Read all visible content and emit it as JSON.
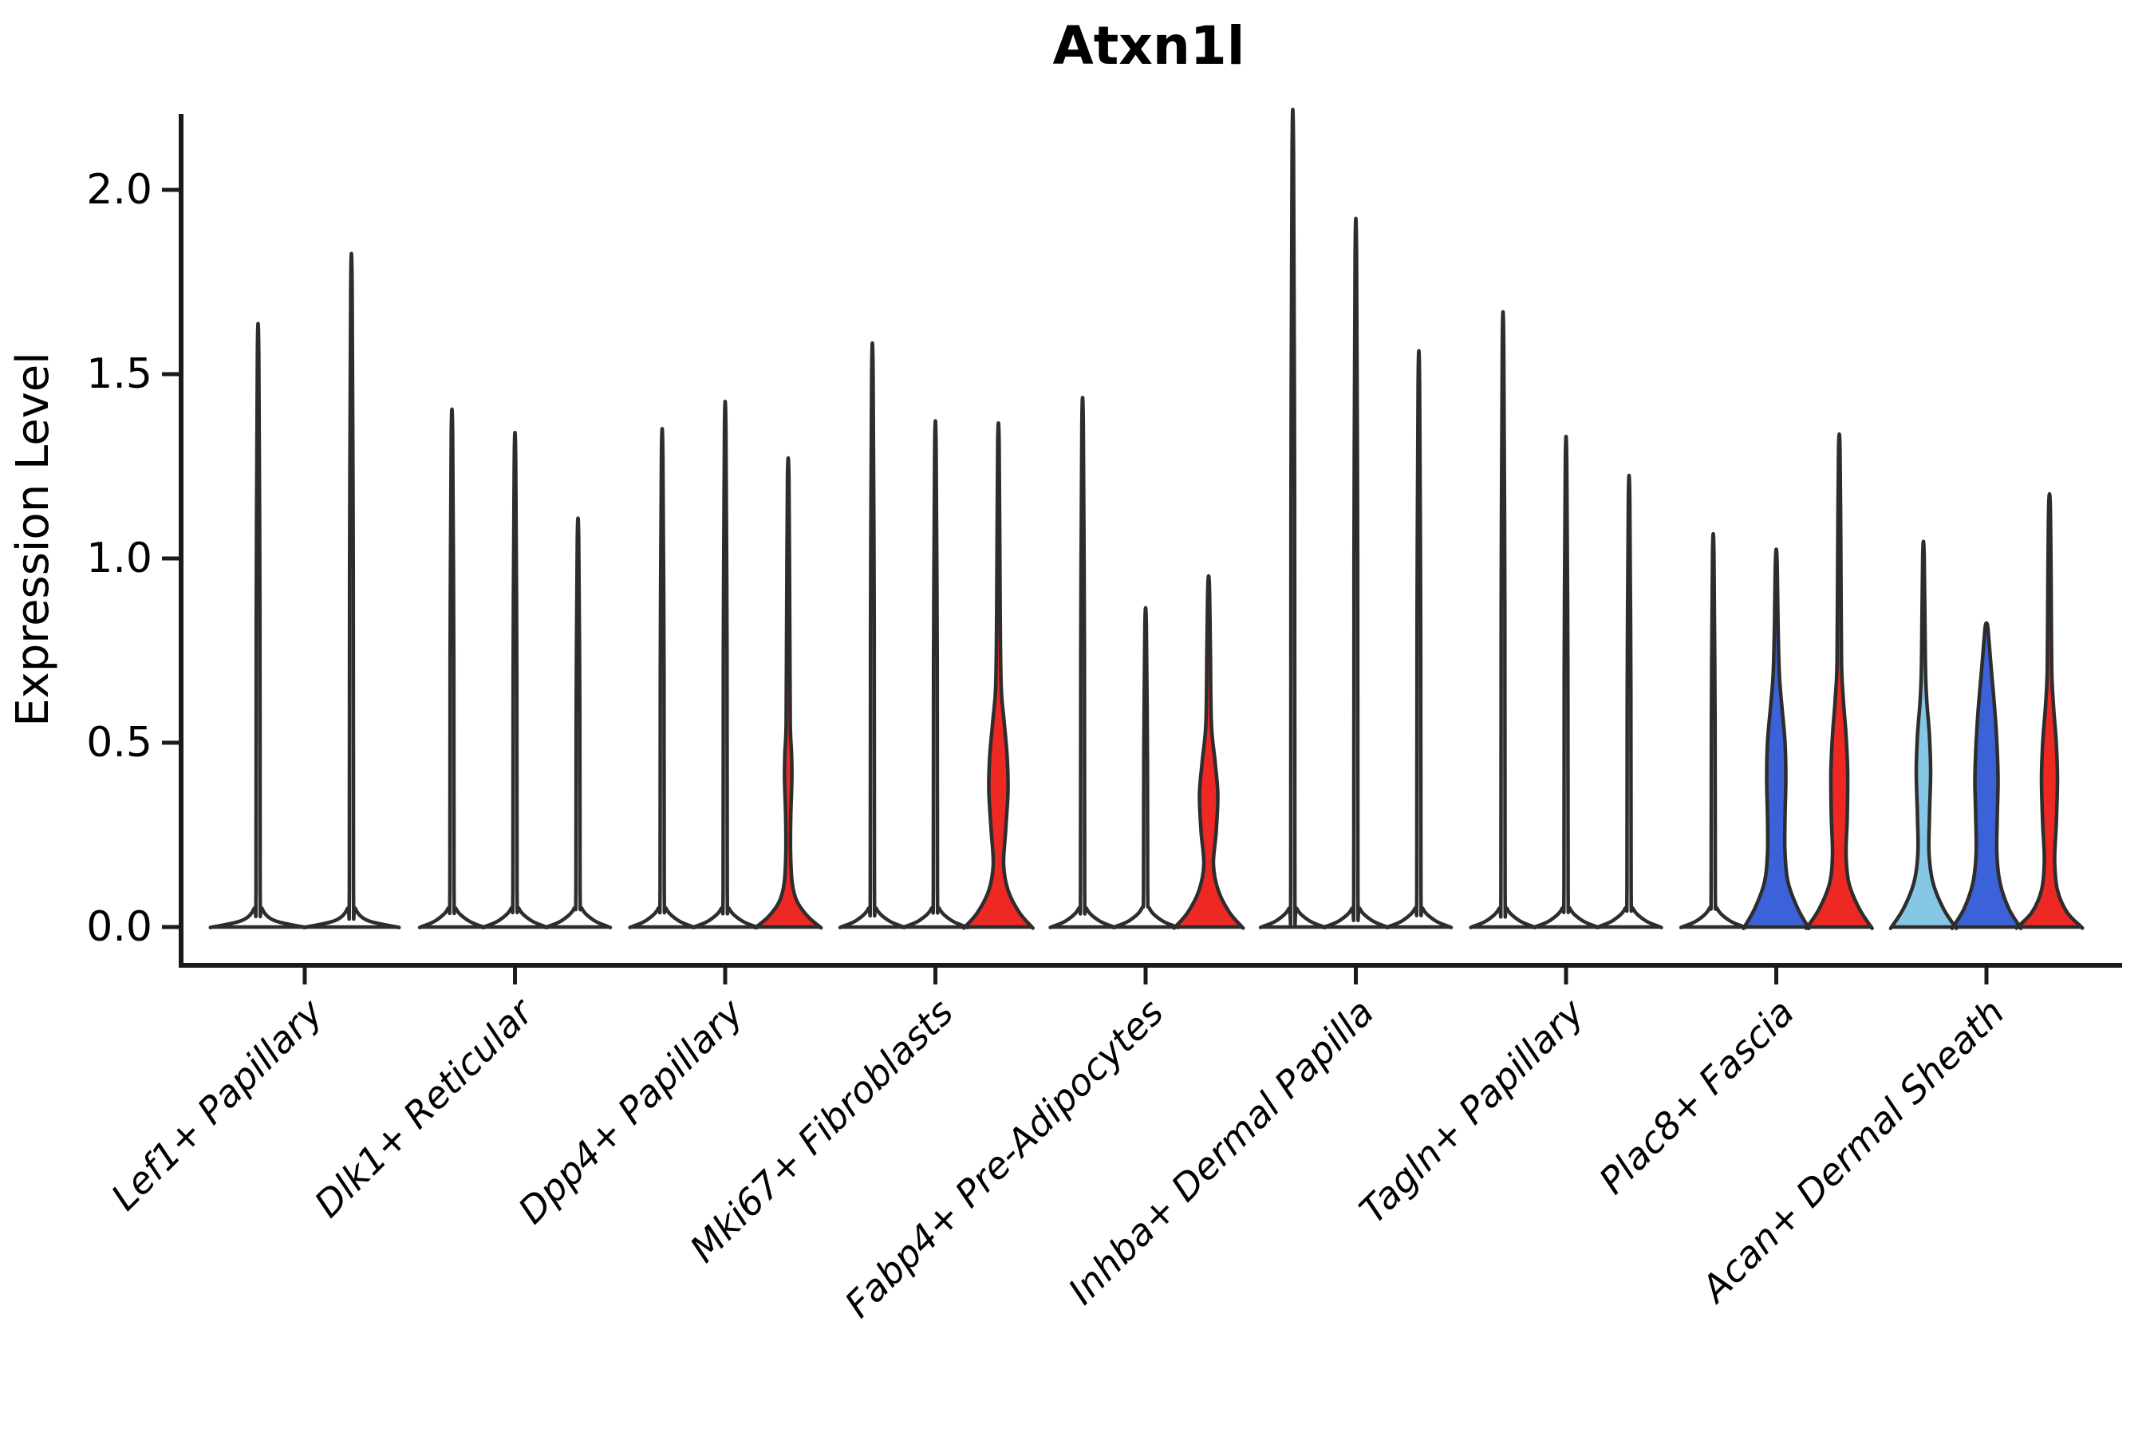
{
  "title": "Atxn1l",
  "ylabel": "Expression Level",
  "chart_data": {
    "type": "violin",
    "title": "Atxn1l",
    "xlabel": "",
    "ylabel": "Expression Level",
    "ylim": [
      -0.105,
      2.21
    ],
    "grid": false,
    "legend": "none",
    "y_ticks": [
      {
        "label": "0.0",
        "value": 0.0
      },
      {
        "label": "0.5",
        "value": 0.5
      },
      {
        "label": "1.0",
        "value": 1.0
      },
      {
        "label": "1.5",
        "value": 1.5
      },
      {
        "label": "2.0",
        "value": 2.0
      }
    ],
    "colors": {
      "red": "#EE2823",
      "blue": "#3B62D8",
      "lightblue": "#85C7E5",
      "outline": "#2D2D2D",
      "axis": "#1A1A1A",
      "fill_default": "#FFFFFF"
    },
    "categories": [
      "Lef1+ Papillary",
      "Dlk1+ Reticular",
      "Dpp4+ Papillary",
      "Mki67+ Fibroblasts",
      "Fabp4+ Pre-Adipocytes",
      "Inhba+ Dermal Papilla",
      "Tagln+ Papillary",
      "Plac8+ Fascia",
      "Acan+ Dermal Sheath"
    ],
    "groups": [
      {
        "category": "Lef1+ Papillary",
        "violins": [
          {
            "max": 1.55,
            "fill": "none"
          },
          {
            "max": 1.73,
            "fill": "none"
          }
        ]
      },
      {
        "category": "Dlk1+ Reticular",
        "violins": [
          {
            "max": 1.33,
            "fill": "none"
          },
          {
            "max": 1.27,
            "fill": "none"
          },
          {
            "max": 1.05,
            "fill": "none"
          }
        ]
      },
      {
        "category": "Dpp4+ Papillary",
        "violins": [
          {
            "max": 1.28,
            "fill": "none"
          },
          {
            "max": 1.35,
            "fill": "none"
          },
          {
            "max": 1.22,
            "fill": "red",
            "profile": [
              [
                0,
                40
              ],
              [
                0.03,
                24
              ],
              [
                0.07,
                11
              ],
              [
                0.12,
                5
              ],
              [
                0.2,
                3
              ],
              [
                0.3,
                3.2
              ],
              [
                0.4,
                4.6
              ],
              [
                0.47,
                4.2
              ],
              [
                0.55,
                2.6
              ],
              [
                0.8,
                2
              ],
              [
                1.22,
                0.9
              ]
            ]
          }
        ]
      },
      {
        "category": "Mki67+ Fibroblasts",
        "violins": [
          {
            "max": 1.5,
            "fill": "none"
          },
          {
            "max": 1.3,
            "fill": "none"
          },
          {
            "max": 1.31,
            "fill": "red",
            "profile": [
              [
                0,
                42
              ],
              [
                0.04,
                26
              ],
              [
                0.1,
                12
              ],
              [
                0.17,
                6.5
              ],
              [
                0.26,
                9
              ],
              [
                0.37,
                12
              ],
              [
                0.46,
                11
              ],
              [
                0.56,
                7
              ],
              [
                0.65,
                3.5
              ],
              [
                0.85,
                2.2
              ],
              [
                1.31,
                0.9
              ]
            ]
          }
        ]
      },
      {
        "category": "Fabp4+ Pre-Adipocytes",
        "violins": [
          {
            "max": 1.36,
            "fill": "none"
          },
          {
            "max": 0.82,
            "fill": "none"
          },
          {
            "max": 0.93,
            "fill": "red",
            "profile": [
              [
                0,
                42
              ],
              [
                0.04,
                26
              ],
              [
                0.1,
                12
              ],
              [
                0.17,
                6
              ],
              [
                0.26,
                9.5
              ],
              [
                0.36,
                11.5
              ],
              [
                0.45,
                8
              ],
              [
                0.55,
                3.5
              ],
              [
                0.75,
                2.2
              ],
              [
                0.93,
                0.9
              ]
            ]
          }
        ]
      },
      {
        "category": "Inhba+ Dermal Papilla",
        "violins": [
          {
            "max": 2.1,
            "fill": "none"
          },
          {
            "max": 1.82,
            "fill": "none"
          },
          {
            "max": 1.48,
            "fill": "none"
          }
        ]
      },
      {
        "category": "Tagln+ Papillary",
        "violins": [
          {
            "max": 1.58,
            "fill": "none"
          },
          {
            "max": 1.26,
            "fill": "none"
          },
          {
            "max": 1.16,
            "fill": "none"
          }
        ]
      },
      {
        "category": "Plac8+ Fascia",
        "violins": [
          {
            "max": 1.01,
            "fill": "none"
          },
          {
            "max": 1.0,
            "fill": "blue",
            "profile": [
              [
                0,
                40
              ],
              [
                0.05,
                27
              ],
              [
                0.12,
                15
              ],
              [
                0.2,
                11
              ],
              [
                0.3,
                11
              ],
              [
                0.4,
                12
              ],
              [
                0.5,
                11
              ],
              [
                0.6,
                7
              ],
              [
                0.68,
                4
              ],
              [
                0.8,
                2.4
              ],
              [
                1.0,
                0.9
              ]
            ]
          },
          {
            "max": 1.3,
            "fill": "red",
            "profile": [
              [
                0,
                40
              ],
              [
                0.05,
                25
              ],
              [
                0.12,
                12
              ],
              [
                0.2,
                8.5
              ],
              [
                0.3,
                10
              ],
              [
                0.42,
                10.5
              ],
              [
                0.52,
                8.5
              ],
              [
                0.62,
                5
              ],
              [
                0.72,
                2.8
              ],
              [
                1.0,
                2
              ],
              [
                1.3,
                0.9
              ]
            ]
          }
        ]
      },
      {
        "category": "Acan+ Dermal Sheath",
        "violins": [
          {
            "max": 1.01,
            "fill": "lightblue",
            "profile": [
              [
                0,
                40
              ],
              [
                0.05,
                25
              ],
              [
                0.12,
                12
              ],
              [
                0.2,
                7
              ],
              [
                0.3,
                7.5
              ],
              [
                0.42,
                9
              ],
              [
                0.52,
                7.5
              ],
              [
                0.62,
                4
              ],
              [
                0.72,
                2.4
              ],
              [
                1.01,
                0.9
              ]
            ]
          },
          {
            "max": 0.82,
            "fill": "blue",
            "profile": [
              [
                0,
                42
              ],
              [
                0.05,
                28
              ],
              [
                0.12,
                17
              ],
              [
                0.2,
                13
              ],
              [
                0.3,
                13.5
              ],
              [
                0.4,
                14.5
              ],
              [
                0.5,
                13
              ],
              [
                0.6,
                10
              ],
              [
                0.7,
                6
              ],
              [
                0.78,
                3
              ],
              [
                0.82,
                1.2
              ]
            ]
          },
          {
            "max": 1.15,
            "fill": "red",
            "profile": [
              [
                0,
                40
              ],
              [
                0.04,
                22
              ],
              [
                0.1,
                10
              ],
              [
                0.18,
                6.5
              ],
              [
                0.28,
                8.5
              ],
              [
                0.4,
                10
              ],
              [
                0.5,
                8.5
              ],
              [
                0.6,
                5
              ],
              [
                0.7,
                2.8
              ],
              [
                0.95,
                2
              ],
              [
                1.15,
                0.9
              ]
            ]
          }
        ]
      }
    ]
  }
}
